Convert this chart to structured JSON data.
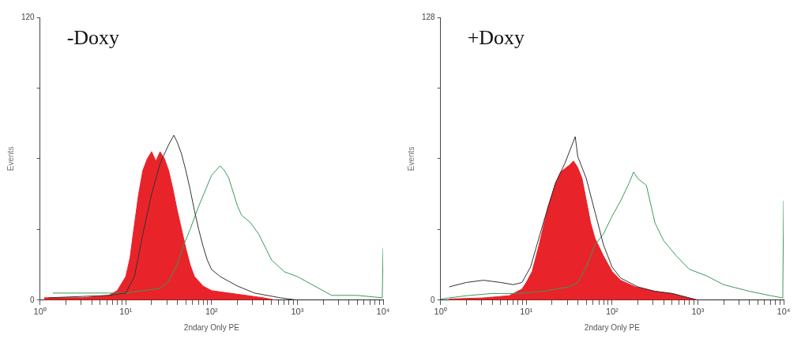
{
  "chart_data": [
    {
      "type": "area",
      "title": "-Doxy",
      "xlabel": "2ndary Only PE",
      "ylabel": "Events",
      "log": "x",
      "grid": false,
      "marker": "none",
      "xlim": [
        1,
        10000
      ],
      "ylim": [
        0,
        120
      ],
      "xticks": [
        {
          "value": 1,
          "label": "10⁰"
        },
        {
          "value": 2,
          "label": null
        },
        {
          "value": 3,
          "label": null
        },
        {
          "value": 4,
          "label": null
        },
        {
          "value": 5,
          "label": null
        },
        {
          "value": 6,
          "label": null
        },
        {
          "value": 7,
          "label": null
        },
        {
          "value": 8,
          "label": null
        },
        {
          "value": 9,
          "label": null
        },
        {
          "value": 10,
          "label": "10¹"
        },
        {
          "value": 20,
          "label": null
        },
        {
          "value": 30,
          "label": null
        },
        {
          "value": 40,
          "label": null
        },
        {
          "value": 50,
          "label": null
        },
        {
          "value": 60,
          "label": null
        },
        {
          "value": 70,
          "label": null
        },
        {
          "value": 80,
          "label": null
        },
        {
          "value": 90,
          "label": null
        },
        {
          "value": 100,
          "label": "10²"
        },
        {
          "value": 200,
          "label": null
        },
        {
          "value": 300,
          "label": null
        },
        {
          "value": 400,
          "label": null
        },
        {
          "value": 500,
          "label": null
        },
        {
          "value": 600,
          "label": null
        },
        {
          "value": 700,
          "label": null
        },
        {
          "value": 800,
          "label": null
        },
        {
          "value": 900,
          "label": null
        },
        {
          "value": 1000,
          "label": "10³"
        },
        {
          "value": 2000,
          "label": null
        },
        {
          "value": 3000,
          "label": null
        },
        {
          "value": 4000,
          "label": null
        },
        {
          "value": 5000,
          "label": null
        },
        {
          "value": 6000,
          "label": null
        },
        {
          "value": 7000,
          "label": null
        },
        {
          "value": 8000,
          "label": null
        },
        {
          "value": 9000,
          "label": null
        },
        {
          "value": 10000,
          "label": "10⁴"
        }
      ],
      "yticks": [
        0,
        {
          "value": 30,
          "label": null
        },
        {
          "value": 60,
          "label": null
        },
        {
          "value": 90,
          "label": null
        },
        120
      ],
      "series": [
        {
          "type": "area",
          "color": "#e8242a",
          "x": [
            1.12,
            3.16,
            6.31,
            7.94,
            8.91,
            10,
            11.2,
            12.6,
            14.1,
            15.8,
            17.8,
            20,
            22.4,
            25.1,
            28.2,
            31.6,
            35.5,
            39.8,
            44.7,
            50.1,
            56.2,
            63.1,
            79.4,
            100,
            158,
            251,
            398,
            562
          ],
          "values": [
            1,
            1,
            2,
            4,
            7,
            10,
            18,
            32,
            45,
            55,
            60,
            63,
            59,
            63,
            60,
            55,
            47,
            38,
            30,
            22,
            15,
            10,
            6,
            4,
            3,
            2,
            1,
            0
          ]
        },
        {
          "type": "line",
          "color": "#333333",
          "x": [
            1.26,
            6.31,
            10,
            12.6,
            15.8,
            20,
            25.1,
            31.6,
            36.3,
            39.8,
            44.7,
            50.1,
            56.2,
            63.1,
            70.8,
            79.4,
            89.1,
            100,
            126,
            158,
            200,
            316,
            631,
            1000
          ],
          "values": [
            1,
            2,
            3,
            10,
            28,
            45,
            58,
            66,
            70,
            67,
            62,
            55,
            47,
            38,
            30,
            23,
            17,
            13,
            10,
            8,
            6,
            3,
            1,
            0
          ]
        },
        {
          "type": "line",
          "color": "#3a9a5a",
          "x": [
            1.41,
            3.16,
            6.31,
            10,
            15.8,
            25.1,
            31.6,
            39.8,
            46.8,
            56.2,
            69.2,
            100,
            126,
            141,
            158,
            200,
            224,
            282,
            355,
            501,
            708,
            1000,
            1585,
            2512,
            5012,
            9772,
            10000
          ],
          "values": [
            3,
            3,
            3,
            3,
            4,
            5,
            8,
            15,
            23,
            30,
            39,
            53,
            57,
            55,
            52,
            40,
            36,
            33,
            28,
            17,
            12,
            10,
            6,
            2,
            2,
            1,
            22
          ]
        }
      ]
    },
    {
      "type": "area",
      "title": "+Doxy",
      "xlabel": "2ndary Only PE",
      "ylabel": "Events",
      "log": "x",
      "grid": false,
      "marker": "none",
      "xlim": [
        1,
        10000
      ],
      "ylim": [
        0,
        128
      ],
      "xticks": [
        {
          "value": 1,
          "label": "10⁰"
        },
        {
          "value": 2,
          "label": null
        },
        {
          "value": 3,
          "label": null
        },
        {
          "value": 4,
          "label": null
        },
        {
          "value": 5,
          "label": null
        },
        {
          "value": 6,
          "label": null
        },
        {
          "value": 7,
          "label": null
        },
        {
          "value": 8,
          "label": null
        },
        {
          "value": 9,
          "label": null
        },
        {
          "value": 10,
          "label": "10¹"
        },
        {
          "value": 20,
          "label": null
        },
        {
          "value": 30,
          "label": null
        },
        {
          "value": 40,
          "label": null
        },
        {
          "value": 50,
          "label": null
        },
        {
          "value": 60,
          "label": null
        },
        {
          "value": 70,
          "label": null
        },
        {
          "value": 80,
          "label": null
        },
        {
          "value": 90,
          "label": null
        },
        {
          "value": 100,
          "label": "10²"
        },
        {
          "value": 200,
          "label": null
        },
        {
          "value": 300,
          "label": null
        },
        {
          "value": 400,
          "label": null
        },
        {
          "value": 500,
          "label": null
        },
        {
          "value": 600,
          "label": null
        },
        {
          "value": 700,
          "label": null
        },
        {
          "value": 800,
          "label": null
        },
        {
          "value": 900,
          "label": null
        },
        {
          "value": 1000,
          "label": "10³"
        },
        {
          "value": 2000,
          "label": null
        },
        {
          "value": 3000,
          "label": null
        },
        {
          "value": 4000,
          "label": null
        },
        {
          "value": 5000,
          "label": null
        },
        {
          "value": 6000,
          "label": null
        },
        {
          "value": 7000,
          "label": null
        },
        {
          "value": 8000,
          "label": null
        },
        {
          "value": 9000,
          "label": null
        },
        {
          "value": 10000,
          "label": "10⁴"
        }
      ],
      "yticks": [
        0,
        {
          "value": 32,
          "label": null
        },
        {
          "value": 64,
          "label": null
        },
        {
          "value": 96,
          "label": null
        },
        128
      ],
      "series": [
        {
          "type": "area",
          "color": "#e8242a",
          "x": [
            1.26,
            3.16,
            6.31,
            8.91,
            10,
            11.7,
            14.1,
            17.8,
            21.9,
            25.1,
            31.6,
            35.5,
            39.8,
            44.7,
            50.1,
            56.2,
            63.1,
            79.4,
            100,
            126,
            186,
            316,
            501,
            794,
            1000
          ],
          "values": [
            0.5,
            1,
            2,
            5,
            8,
            13,
            25,
            42,
            53,
            58,
            61,
            63,
            60,
            55,
            45,
            35,
            28,
            20,
            13,
            9,
            6,
            4,
            3,
            1,
            0
          ]
        },
        {
          "type": "line",
          "color": "#333333",
          "x": [
            1.26,
            2,
            3.16,
            5.01,
            7.08,
            8.91,
            11.2,
            15.8,
            21.9,
            28.2,
            37.2,
            39.8,
            50.1,
            63.1,
            79.4,
            100,
            126,
            200,
            316,
            501,
            794,
            1000
          ],
          "values": [
            6,
            8,
            9,
            8,
            7,
            8,
            15,
            35,
            53,
            62,
            74,
            65,
            55,
            40,
            25,
            15,
            10,
            6,
            4,
            3,
            1,
            0
          ]
        },
        {
          "type": "line",
          "color": "#3a9a5a",
          "x": [
            1,
            2,
            3.98,
            7.94,
            15.8,
            31.6,
            39.8,
            50.1,
            63.1,
            79.4,
            100,
            126,
            158,
            178,
            200,
            251,
            316,
            398,
            562,
            794,
            1259,
            1995,
            3981,
            7079,
            9772,
            10000
          ],
          "values": [
            0.5,
            2,
            3,
            3,
            4,
            6,
            8,
            15,
            25,
            30,
            38,
            45,
            53,
            58,
            55,
            52,
            35,
            27,
            20,
            14,
            11,
            7,
            4,
            2,
            1,
            45
          ]
        }
      ]
    }
  ]
}
